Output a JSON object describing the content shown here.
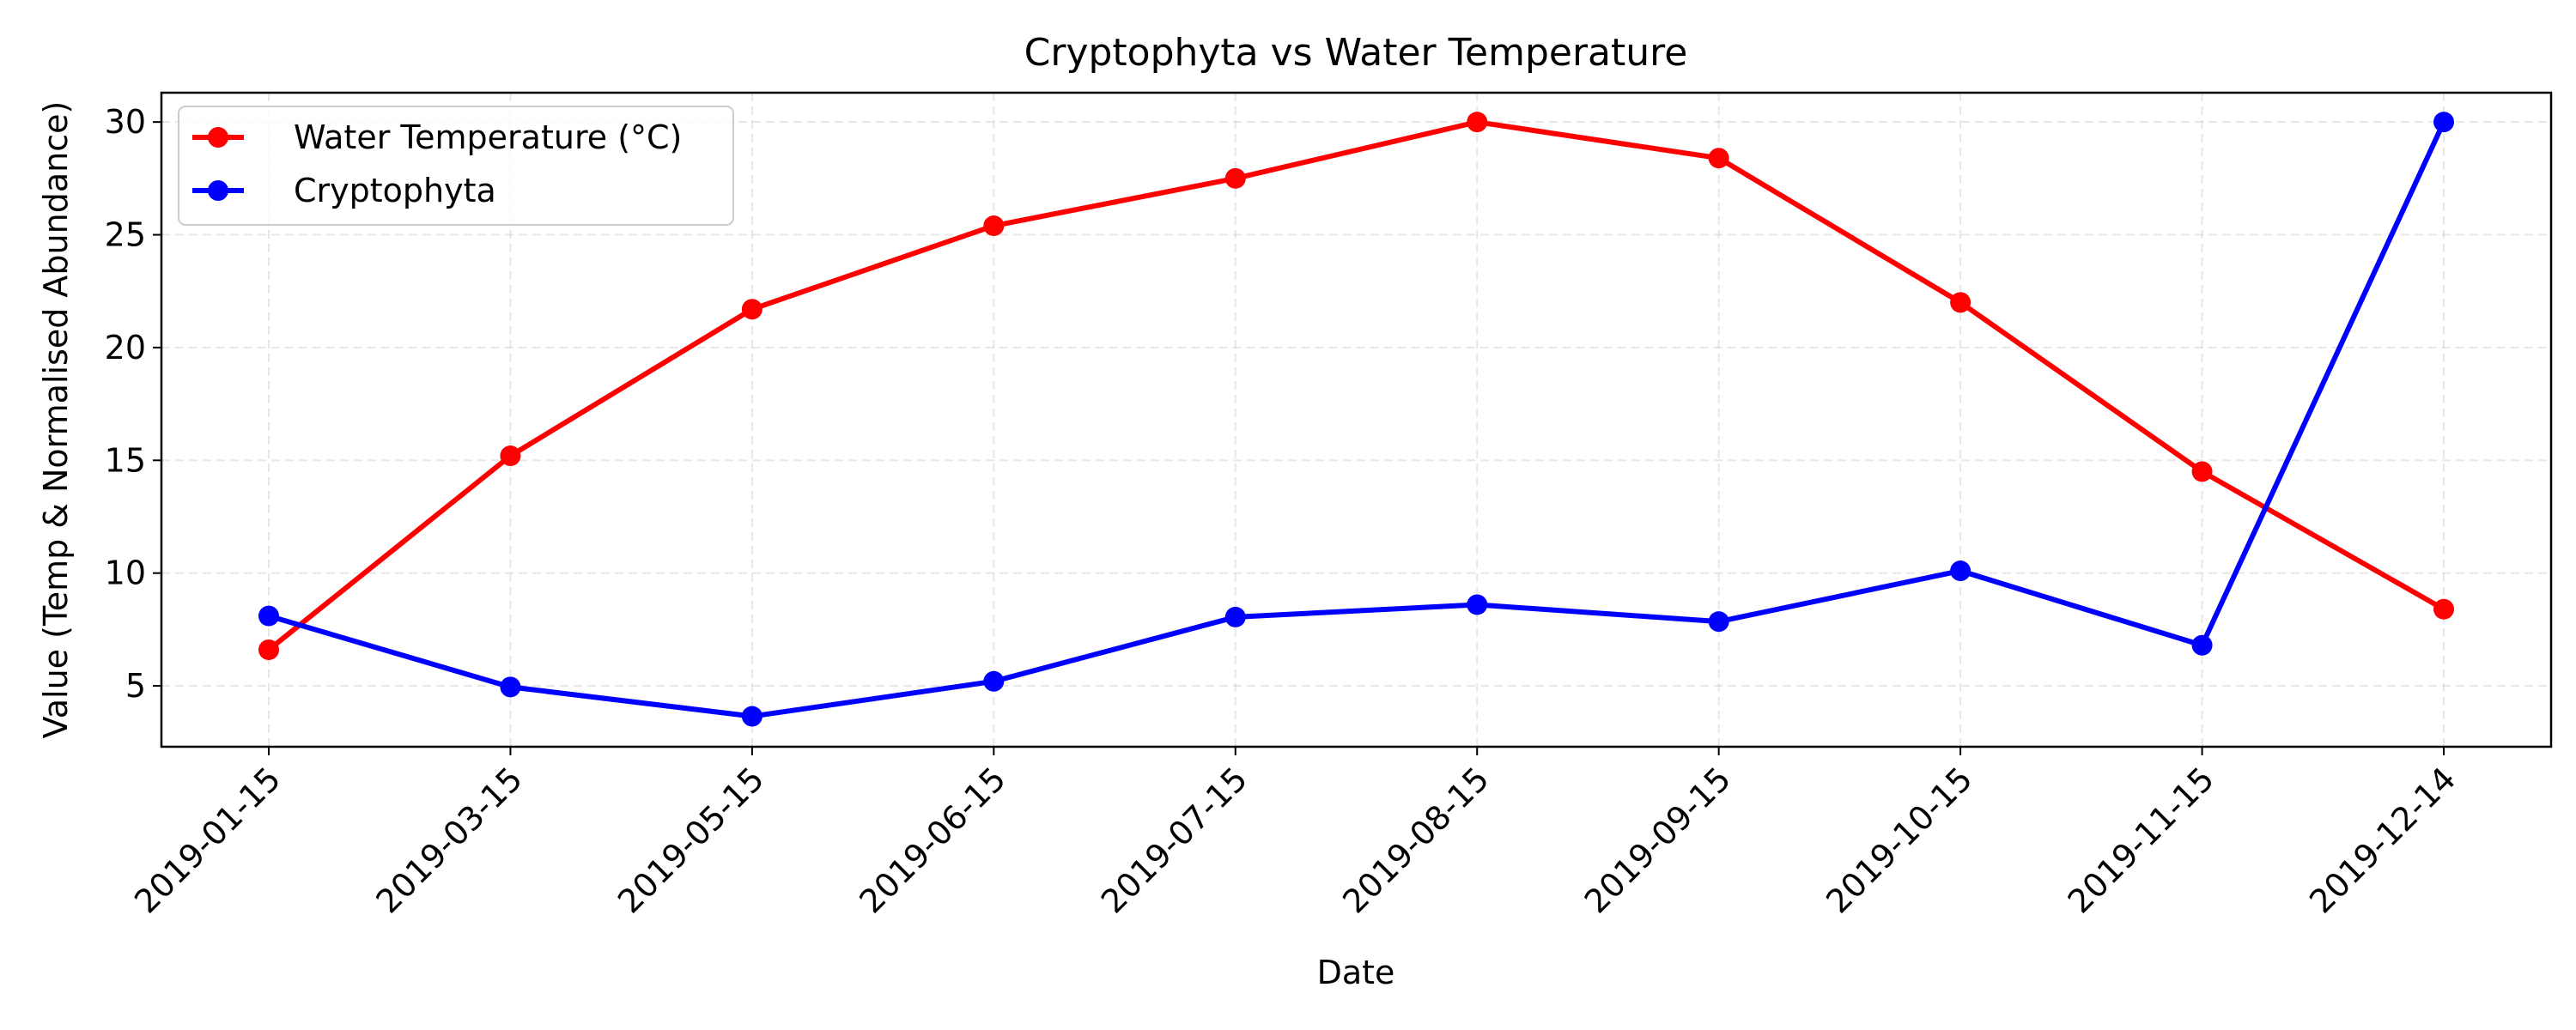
{
  "chart_data": {
    "type": "line",
    "title": "Cryptophyta vs Water Temperature",
    "xlabel": "Date",
    "ylabel": "Value (Temp & Normalised Abundance)",
    "x": [
      "2019-01-15",
      "2019-03-15",
      "2019-05-15",
      "2019-06-15",
      "2019-07-15",
      "2019-08-15",
      "2019-09-15",
      "2019-10-15",
      "2019-11-15",
      "2019-12-14"
    ],
    "series": [
      {
        "name": "Water Temperature (°C)",
        "color": "#ff0000",
        "values": [
          6.6,
          15.2,
          21.7,
          25.4,
          27.5,
          30.0,
          28.4,
          22.0,
          14.5,
          8.4
        ]
      },
      {
        "name": "Cryptophyta",
        "color": "#0000ff",
        "values": [
          8.1,
          4.95,
          3.65,
          5.2,
          8.05,
          8.6,
          7.85,
          10.1,
          6.8,
          30.0
        ]
      }
    ],
    "ylim": [
      2.3,
      31.3
    ],
    "yticks": [
      5,
      10,
      15,
      20,
      25,
      30
    ],
    "grid": true,
    "legend_position": "top-left"
  }
}
